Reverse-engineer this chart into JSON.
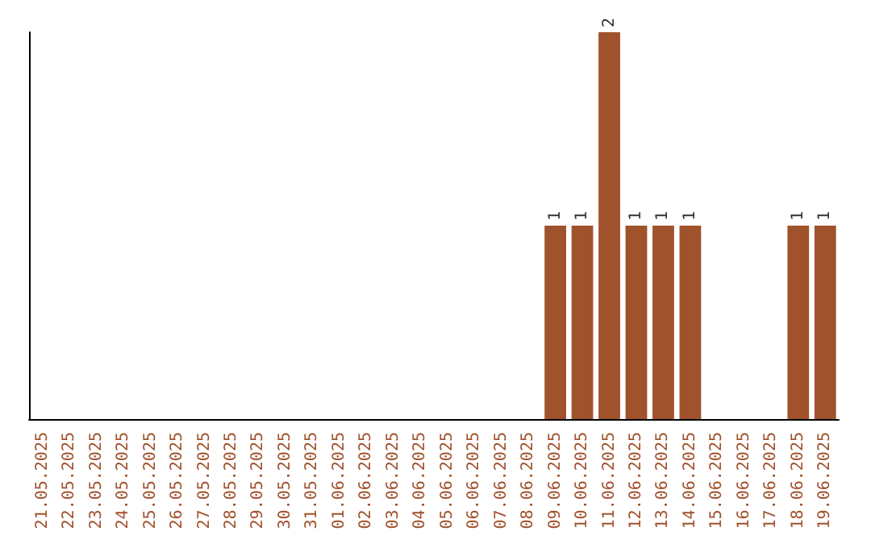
{
  "chart_data": {
    "type": "bar",
    "categories": [
      "21.05.2025",
      "22.05.2025",
      "23.05.2025",
      "24.05.2025",
      "25.05.2025",
      "26.05.2025",
      "27.05.2025",
      "28.05.2025",
      "29.05.2025",
      "30.05.2025",
      "31.05.2025",
      "01.06.2025",
      "02.06.2025",
      "03.06.2025",
      "04.06.2025",
      "05.06.2025",
      "06.06.2025",
      "07.06.2025",
      "08.06.2025",
      "09.06.2025",
      "10.06.2025",
      "11.06.2025",
      "12.06.2025",
      "13.06.2025",
      "14.06.2025",
      "15.06.2025",
      "16.06.2025",
      "17.06.2025",
      "18.06.2025",
      "19.06.2025"
    ],
    "values": [
      null,
      null,
      null,
      null,
      null,
      null,
      null,
      null,
      null,
      null,
      null,
      null,
      null,
      null,
      null,
      null,
      null,
      null,
      null,
      1,
      1,
      2,
      1,
      1,
      1,
      null,
      null,
      null,
      1,
      1
    ],
    "value_labels": [
      null,
      null,
      null,
      null,
      null,
      null,
      null,
      null,
      null,
      null,
      null,
      null,
      null,
      null,
      null,
      null,
      null,
      null,
      null,
      "1",
      "1",
      "2",
      "1",
      "1",
      "1",
      null,
      null,
      null,
      "1",
      "1"
    ],
    "color": "#a0522d",
    "tick_labels": "x",
    "grid": false
  }
}
